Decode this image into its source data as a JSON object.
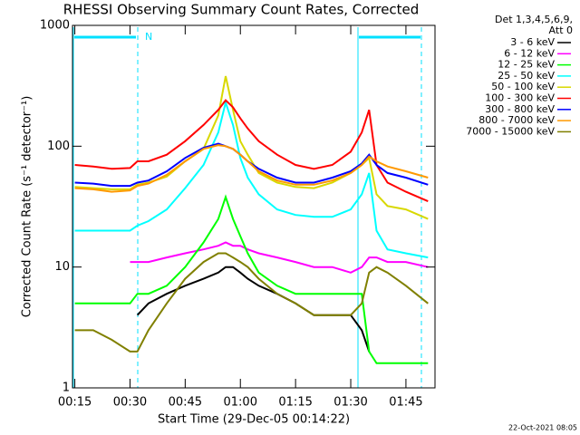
{
  "chart_data": {
    "type": "line",
    "title": "RHESSI Observing Summary Count Rates, Corrected",
    "x_label": "Start Time (29-Dec-05 00:14:22)",
    "y_label": "Corrected Count Rate (s⁻¹ detector⁻¹)",
    "legend_title": [
      "Det 1,3,4,5,6,9,",
      "Att 0"
    ],
    "footer": "22-Oct-2021 08:05",
    "flag_label": "N",
    "log_y": true,
    "legend": "outside-right",
    "xlim": [
      14.37,
      112.9
    ],
    "ylim": [
      1,
      1000
    ],
    "xticks": [
      {
        "value": 15,
        "label": "00:15"
      },
      {
        "value": 30,
        "label": "00:30"
      },
      {
        "value": 45,
        "label": "00:45"
      },
      {
        "value": 60,
        "label": "01:00"
      },
      {
        "value": 75,
        "label": "01:15"
      },
      {
        "value": 90,
        "label": "01:30"
      },
      {
        "value": 105,
        "label": "01:45"
      }
    ],
    "yticks": [
      1,
      10,
      100,
      1000
    ],
    "x": [
      15,
      20,
      25,
      30,
      32,
      35,
      40,
      45,
      50,
      54,
      56,
      58,
      60,
      62,
      65,
      70,
      75,
      80,
      85,
      90,
      93,
      95,
      97,
      100,
      105,
      111
    ],
    "series": [
      {
        "name": "3 - 6 keV",
        "color": "#000000",
        "values": [
          null,
          null,
          null,
          null,
          4,
          5,
          6,
          7,
          8,
          9,
          10,
          10,
          9,
          8,
          7,
          6,
          5,
          4,
          4,
          4,
          3,
          2,
          null,
          null,
          null,
          null
        ]
      },
      {
        "name": "6 - 12 keV",
        "color": "#ff00ff",
        "values": [
          null,
          null,
          null,
          11,
          11,
          11,
          12,
          13,
          14,
          15,
          16,
          15,
          15,
          14,
          13,
          12,
          11,
          10,
          10,
          9,
          10,
          12,
          12,
          11,
          11,
          10
        ]
      },
      {
        "name": "12 - 25 keV",
        "color": "#00ff00",
        "values": [
          5,
          5,
          5,
          5,
          6,
          6,
          7,
          10,
          16,
          25,
          38,
          25,
          18,
          13,
          9,
          7,
          6,
          6,
          6,
          6,
          6,
          2,
          1.6,
          1.6,
          1.6,
          1.6
        ]
      },
      {
        "name": "25 - 50 keV",
        "color": "#00ffff",
        "values": [
          20,
          20,
          20,
          20,
          22,
          24,
          30,
          45,
          70,
          130,
          230,
          150,
          80,
          55,
          40,
          30,
          27,
          26,
          26,
          30,
          40,
          60,
          20,
          14,
          13,
          12
        ]
      },
      {
        "name": "50 - 100 keV",
        "color": "#d8d800",
        "values": [
          46,
          45,
          44,
          44,
          48,
          50,
          56,
          75,
          95,
          180,
          380,
          200,
          110,
          85,
          60,
          50,
          46,
          45,
          50,
          60,
          70,
          80,
          40,
          32,
          30,
          25
        ]
      },
      {
        "name": "100 - 300 keV",
        "color": "#ff0000",
        "values": [
          70,
          68,
          65,
          66,
          75,
          75,
          85,
          110,
          150,
          200,
          240,
          210,
          170,
          140,
          110,
          85,
          70,
          65,
          70,
          90,
          130,
          200,
          70,
          50,
          42,
          35
        ]
      },
      {
        "name": "300 - 800 keV",
        "color": "#0000ff",
        "values": [
          50,
          49,
          47,
          47,
          50,
          52,
          62,
          80,
          97,
          105,
          100,
          95,
          85,
          75,
          65,
          55,
          50,
          50,
          55,
          62,
          72,
          85,
          70,
          60,
          55,
          48
        ]
      },
      {
        "name": "800 - 7000 keV",
        "color": "#ff9900",
        "values": [
          45,
          44,
          42,
          43,
          47,
          49,
          58,
          75,
          95,
          102,
          100,
          95,
          85,
          75,
          62,
          52,
          48,
          48,
          52,
          60,
          70,
          82,
          75,
          68,
          62,
          55
        ]
      },
      {
        "name": "7000 - 15000 keV",
        "color": "#808000",
        "values": [
          3,
          3,
          2.5,
          2,
          2,
          3,
          5,
          8,
          11,
          13,
          13,
          12,
          11,
          10,
          8,
          6,
          5,
          4,
          4,
          4,
          5,
          9,
          10,
          9,
          7,
          5
        ]
      }
    ]
  }
}
